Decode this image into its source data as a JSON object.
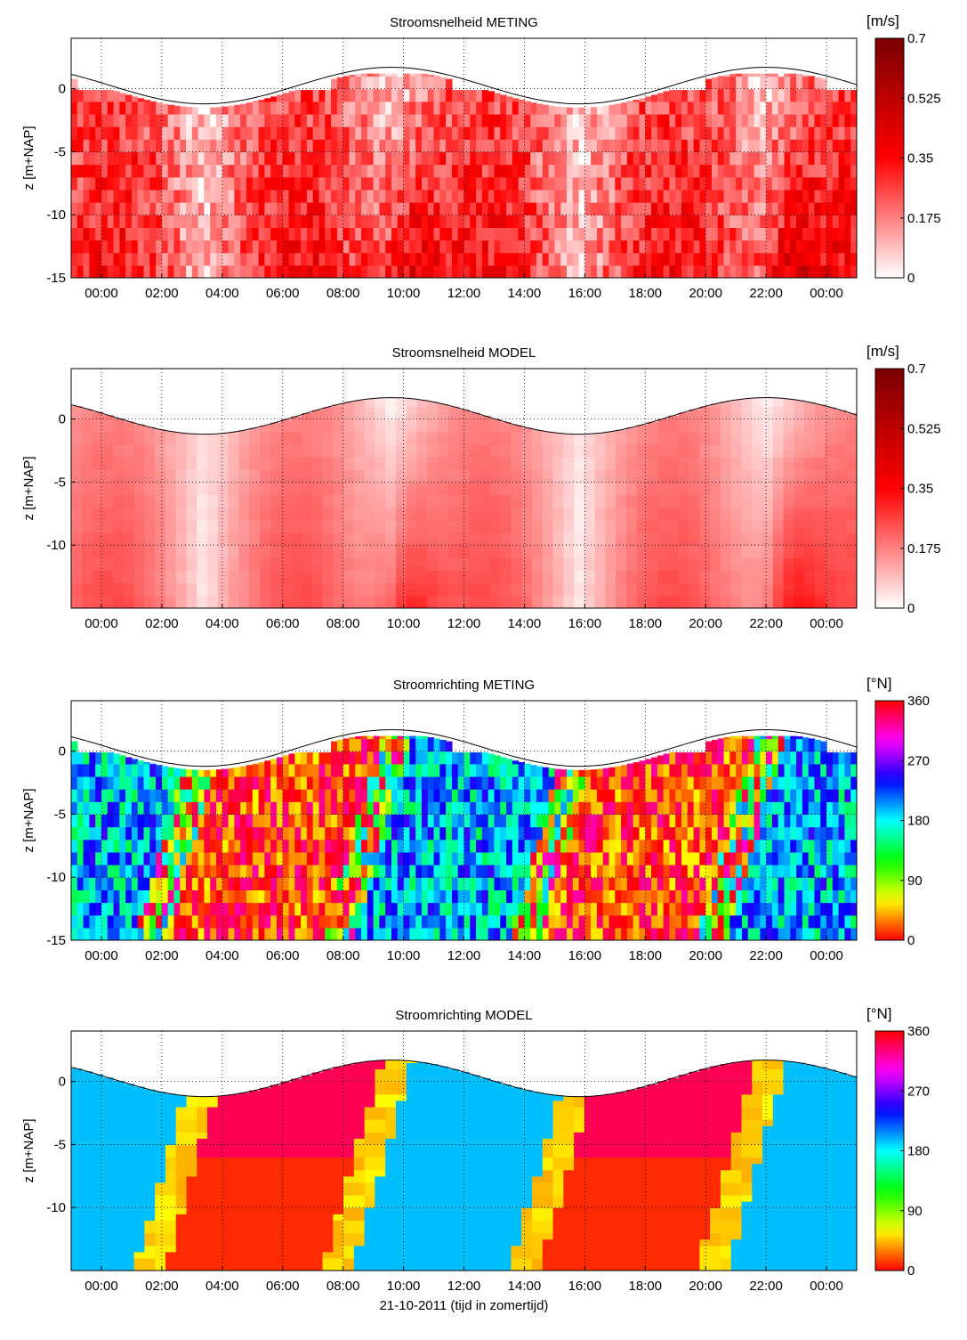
{
  "chart_data": [
    {
      "type": "heatmap",
      "title": "Stroomsnelheid METING",
      "ylabel": "z [m+NAP]",
      "colorbar_unit": "[m/s]",
      "colorbar_ticks": [
        "0.7",
        "0.525",
        "0.35",
        "0.175",
        "0"
      ],
      "colormap": "white-red",
      "clim": [
        0,
        0.7
      ],
      "ylim": [
        -15,
        4
      ],
      "y_ticks": [
        "0",
        "-5",
        "-10",
        "-15"
      ],
      "x_ticks": [
        "00:00",
        "02:00",
        "04:00",
        "06:00",
        "08:00",
        "10:00",
        "12:00",
        "14:00",
        "16:00",
        "18:00",
        "20:00",
        "22:00",
        "00:00"
      ],
      "grid": true
    },
    {
      "type": "heatmap",
      "title": "Stroomsnelheid MODEL",
      "ylabel": "z [m+NAP]",
      "colorbar_unit": "[m/s]",
      "colorbar_ticks": [
        "0.7",
        "0.525",
        "0.35",
        "0.175",
        "0"
      ],
      "colormap": "white-red",
      "clim": [
        0,
        0.7
      ],
      "ylim": [
        -15,
        4
      ],
      "y_ticks": [
        "0",
        "-5",
        "-10"
      ],
      "x_ticks": [
        "00:00",
        "02:00",
        "04:00",
        "06:00",
        "08:00",
        "10:00",
        "12:00",
        "14:00",
        "16:00",
        "18:00",
        "20:00",
        "22:00",
        "00:00"
      ],
      "grid": true
    },
    {
      "type": "heatmap",
      "title": "Stroomrichting METING",
      "ylabel": "z [m+NAP]",
      "colorbar_unit": "[°N]",
      "colorbar_ticks": [
        "360",
        "270",
        "180",
        "90",
        "0"
      ],
      "colormap": "hsv",
      "clim": [
        0,
        360
      ],
      "ylim": [
        -15,
        4
      ],
      "y_ticks": [
        "0",
        "-5",
        "-10",
        "-15"
      ],
      "x_ticks": [
        "00:00",
        "02:00",
        "04:00",
        "06:00",
        "08:00",
        "10:00",
        "12:00",
        "14:00",
        "16:00",
        "18:00",
        "20:00",
        "22:00",
        "00:00"
      ],
      "grid": true
    },
    {
      "type": "heatmap",
      "title": "Stroomrichting MODEL",
      "ylabel": "z [m+NAP]",
      "colorbar_unit": "[°N]",
      "colorbar_ticks": [
        "360",
        "270",
        "180",
        "90",
        "0"
      ],
      "colormap": "hsv",
      "clim": [
        0,
        360
      ],
      "ylim": [
        -15,
        4
      ],
      "y_ticks": [
        "0",
        "-5",
        "-10"
      ],
      "x_ticks": [
        "00:00",
        "02:00",
        "04:00",
        "06:00",
        "08:00",
        "10:00",
        "12:00",
        "14:00",
        "16:00",
        "18:00",
        "20:00",
        "22:00",
        "00:00"
      ],
      "grid": true,
      "xlabel": "21-10-2011 (tijd in zomertijd)"
    }
  ]
}
